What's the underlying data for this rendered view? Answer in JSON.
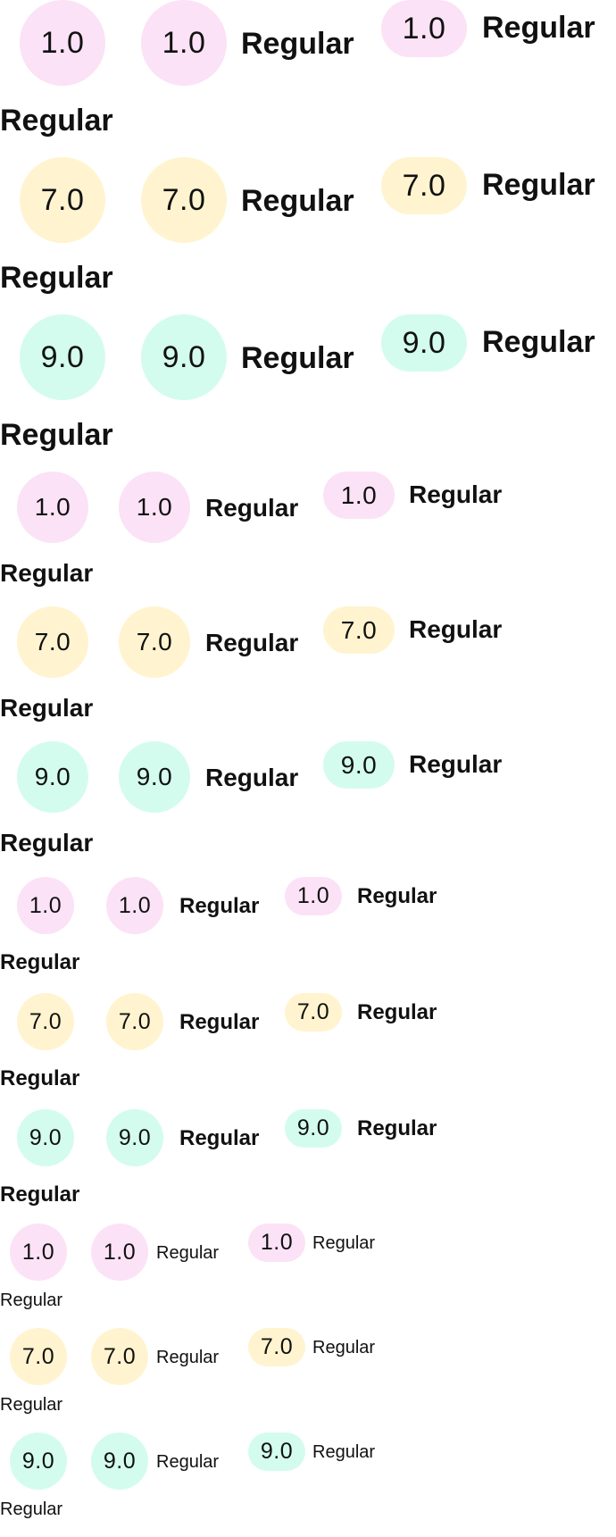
{
  "colors": {
    "pink": "#fce2f6",
    "yellow": "#fff4cf",
    "mint": "#d3fcef",
    "text": "#111111"
  },
  "sections": [
    {
      "size": "xl",
      "rows": [
        {
          "score": "1.0",
          "color": "pink",
          "label": "Regular"
        },
        {
          "score": "7.0",
          "color": "yellow",
          "label": "Regular"
        },
        {
          "score": "9.0",
          "color": "mint",
          "label": "Regular"
        }
      ]
    },
    {
      "size": "lg",
      "rows": [
        {
          "score": "1.0",
          "color": "pink",
          "label": "Regular"
        },
        {
          "score": "7.0",
          "color": "yellow",
          "label": "Regular"
        },
        {
          "score": "9.0",
          "color": "mint",
          "label": "Regular"
        }
      ]
    },
    {
      "size": "md",
      "rows": [
        {
          "score": "1.0",
          "color": "pink",
          "label": "Regular"
        },
        {
          "score": "7.0",
          "color": "yellow",
          "label": "Regular"
        },
        {
          "score": "9.0",
          "color": "mint",
          "label": "Regular"
        }
      ]
    },
    {
      "size": "sm",
      "rows": [
        {
          "score": "1.0",
          "color": "pink",
          "label": "Regular"
        },
        {
          "score": "7.0",
          "color": "yellow",
          "label": "Regular"
        },
        {
          "score": "9.0",
          "color": "mint",
          "label": "Regular"
        }
      ]
    }
  ]
}
